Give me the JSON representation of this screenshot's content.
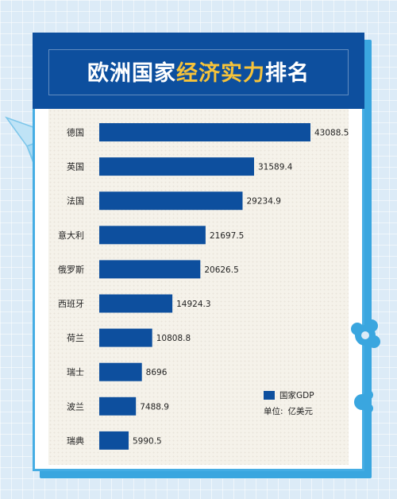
{
  "title": {
    "part1": "欧洲国家",
    "highlight": "经济实力",
    "part2": "排名"
  },
  "legend": {
    "series_name": "国家GDP",
    "unit_label": "单位:",
    "unit_value": "亿美元"
  },
  "colors": {
    "bar": "#0d4f9e",
    "header": "#0d4f9e",
    "highlight": "#f6c33a",
    "frame": "#45ade4"
  },
  "chart_data": {
    "type": "bar",
    "orientation": "horizontal",
    "categories": [
      "德国",
      "英国",
      "法国",
      "意大利",
      "俄罗斯",
      "西班牙",
      "荷兰",
      "瑞士",
      "波兰",
      "瑞典"
    ],
    "series": [
      {
        "name": "国家GDP",
        "values": [
          43088.5,
          31589.4,
          29234.9,
          21697.5,
          20626.5,
          14924.3,
          10808.8,
          8696,
          7488.9,
          5990.5
        ]
      }
    ],
    "value_labels": [
      "43088.5",
      "31589.4",
      "29234.9",
      "21697.5",
      "20626.5",
      "14924.3",
      "10808.8",
      "8696",
      "7488.9",
      "5990.5"
    ],
    "xlim": [
      0,
      43088.5
    ],
    "grid": false,
    "legend_position": "bottom-right"
  }
}
